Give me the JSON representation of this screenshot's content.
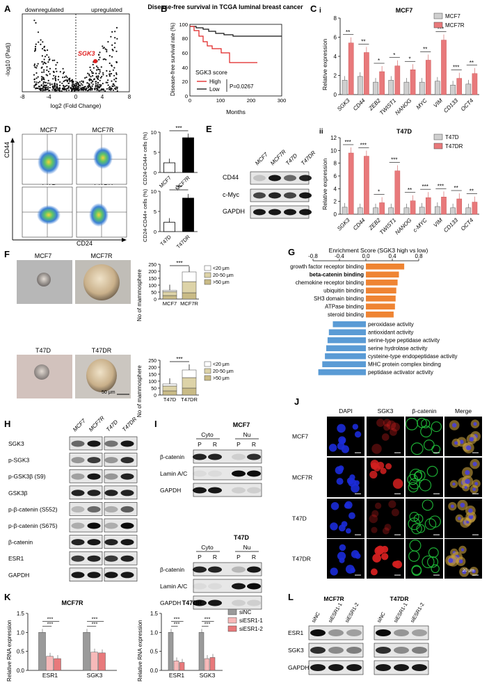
{
  "colors": {
    "red": "#e8797b",
    "red_dark": "#e02020",
    "black": "#111111",
    "gray": "#cfcfcf",
    "orange": "#ef8433",
    "blue": "#5a9bd5",
    "olive": "#c9bb86",
    "olive_light": "#ddd3a8",
    "white": "#ffffff"
  },
  "panelA": {
    "letter": "A",
    "left_label": "downregulated",
    "right_label": "upregulated",
    "ylabel": "-log10 (Padj)",
    "xlabel": "log2 (Fold Change)",
    "highlight": "SGK3",
    "x_ticks": [
      "-8",
      "-4",
      "0",
      "4",
      "8"
    ],
    "y_ticks": [
      "0",
      "10",
      "20",
      "30"
    ]
  },
  "panelB": {
    "letter": "B",
    "title": "Disease-free survival in TCGA luminal breast cancer",
    "ylabel": "Disease-free survival rate (%)",
    "xlabel": "Months",
    "y_ticks": [
      "0",
      "20",
      "40",
      "60",
      "80",
      "100"
    ],
    "x_ticks": [
      "0",
      "100",
      "200",
      "300"
    ],
    "legend_title": "SGK3 score",
    "legend": [
      "High",
      "Low"
    ],
    "pvalue": "P=0.0267"
  },
  "panelC": {
    "letter": "C",
    "i": {
      "roman": "i",
      "title": "MCF7",
      "ylabel": "Relative expression",
      "legend": [
        "MCF7",
        "MCF7R"
      ],
      "y_ticks": [
        "0",
        "2",
        "4",
        "6",
        "8"
      ],
      "ymax": 8,
      "genes": [
        "SGK3",
        "CD44",
        "ZEB2",
        "TWIST1",
        "NANOG",
        "MYC",
        "VIM",
        "CD133",
        "OCT4"
      ],
      "ctrl": [
        1.5,
        1.9,
        1.3,
        1.5,
        1.3,
        1.3,
        1.4,
        1.0,
        1.1
      ],
      "treat": [
        5.4,
        4.4,
        2.4,
        3.0,
        2.6,
        3.6,
        5.7,
        1.7,
        2.2
      ],
      "sig": [
        "**",
        "**",
        "*",
        "*",
        "*",
        "**",
        "***",
        "***",
        "**"
      ]
    },
    "ii": {
      "roman": "ii",
      "title": "T47D",
      "ylabel": "Relative expression",
      "legend": [
        "T47D",
        "T47DR"
      ],
      "y_ticks": [
        "0",
        "2",
        "4",
        "6",
        "8",
        "10",
        "12"
      ],
      "ymax": 12,
      "genes": [
        "SGK3",
        "CD44",
        "ZEB2",
        "TWIST1",
        "NANOG",
        "c-MYC",
        "VIM",
        "CD133",
        "OCT4"
      ],
      "ctrl": [
        1.1,
        1.0,
        1.0,
        1.0,
        1.0,
        1.1,
        1.2,
        1.0,
        1.0
      ],
      "treat": [
        9.6,
        9.1,
        1.8,
        6.8,
        2.1,
        2.6,
        2.7,
        2.4,
        1.9
      ],
      "sig": [
        "***",
        "***",
        "*",
        "***",
        "**",
        "***",
        "***",
        "**",
        "**"
      ]
    }
  },
  "panelD": {
    "letter": "D",
    "plots": [
      "MCF7",
      "MCF7R",
      "T47D",
      "T47DR"
    ],
    "y_axis": "CD44",
    "x_axis": "CD24",
    "bar1": {
      "categories": [
        "MCF7",
        "MCF7R"
      ],
      "values": [
        2.4,
        8.6
      ],
      "y_ticks": [
        "0",
        "5",
        "10"
      ],
      "ylabel": "CD24-CD44+ cells (%)",
      "sig": "***"
    },
    "bar2": {
      "categories": [
        "T47D",
        "T47DR"
      ],
      "values": [
        2.3,
        8.3
      ],
      "y_ticks": [
        "0",
        "5",
        "10"
      ],
      "ylabel": "CD24-CD44+ cells (%)",
      "sig": "***"
    }
  },
  "panelE": {
    "letter": "E",
    "lanes": [
      "MCF7",
      "MCF7R",
      "T47D",
      "T47DR"
    ],
    "rows": [
      "CD44",
      "c-Myc",
      "GAPDH"
    ]
  },
  "panelF": {
    "letter": "F",
    "images": [
      "MCF7",
      "MCF7R",
      "T47D",
      "T47DR"
    ],
    "scale": "50 μm",
    "legend": [
      "<20 μm",
      "20-50 μm",
      ">50 μm"
    ],
    "ylabel": "No of mammosphere",
    "y_ticks": [
      "0",
      "50",
      "100",
      "150",
      "200",
      "250"
    ],
    "chart1": {
      "categories": [
        "MCF7",
        "MCF7R"
      ],
      "small": [
        25,
        45
      ],
      "mid": [
        28,
        80
      ],
      "large": [
        10,
        70
      ],
      "total": [
        63,
        195
      ],
      "sig": "***"
    },
    "chart2": {
      "categories": [
        "T47D",
        "T47DR"
      ],
      "small": [
        30,
        50
      ],
      "mid": [
        35,
        75
      ],
      "large": [
        15,
        55
      ],
      "total": [
        80,
        180
      ],
      "sig": "***"
    }
  },
  "panelG": {
    "letter": "G",
    "title": "Enrichment Score (SGK3 high vs low)",
    "x_ticks": [
      "-0.8",
      "-0.4",
      "0.0",
      "0.4",
      "0.8"
    ],
    "pos_terms": [
      "growth factor receptor binding",
      "beta-catenin binding",
      "chemokine receptor binding",
      "ubiquitin binding",
      "SH3 domain binding",
      "ATPase binding",
      "steroid binding"
    ],
    "pos_values": [
      0.58,
      0.5,
      0.48,
      0.46,
      0.45,
      0.44,
      0.42
    ],
    "neg_terms": [
      "peroxidase activity",
      "antioxidant activity",
      "serine-type peptidase activity",
      "serine hydrolase activity",
      "cysteine-type endopeptidase activity",
      "MHC protein complex binding",
      "peptidase activator activity"
    ],
    "neg_values": [
      -0.5,
      -0.56,
      -0.58,
      -0.6,
      -0.62,
      -0.66,
      -0.72
    ]
  },
  "panelH": {
    "letter": "H",
    "lanes": [
      "MCF7",
      "MCF7R",
      "T47D",
      "T47DR"
    ],
    "rows": [
      "SGK3",
      "p-SGK3",
      "p-GSK3β (S9)",
      "GSK3β",
      "p-β-catenin (S552)",
      "p-β-catenin (S675)",
      "β-catenin",
      "ESR1",
      "GAPDH"
    ]
  },
  "panelI": {
    "letter": "I",
    "blot1": {
      "title": "MCF7",
      "groups": [
        "Cyto",
        "Nu"
      ],
      "lanes": [
        "P",
        "R",
        "P",
        "R"
      ],
      "rows": [
        "β-catenin",
        "Lamin A/C",
        "GAPDH"
      ]
    },
    "blot2": {
      "title": "T47D",
      "groups": [
        "Cyto",
        "Nu"
      ],
      "lanes": [
        "P",
        "R",
        "P",
        "R"
      ],
      "rows": [
        "β-catenin",
        "Lamin A/C",
        "GAPDH"
      ]
    }
  },
  "panelJ": {
    "letter": "J",
    "columns": [
      "DAPI",
      "SGK3",
      "β-catenin",
      "Merge"
    ],
    "rows": [
      "MCF7",
      "MCF7R",
      "T47D",
      "T47DR"
    ],
    "scale": "20 μm"
  },
  "panelK": {
    "letter": "K",
    "ylabel": "Relative RNA expression",
    "y_ticks": [
      "0.0",
      "0.5",
      "1.0",
      "1.5"
    ],
    "legend": [
      "siNC",
      "siESR1-1",
      "siESR1-2"
    ],
    "charts": [
      {
        "title": "MCF7R",
        "categories": [
          "ESR1",
          "SGK3"
        ],
        "values": [
          [
            1.0,
            0.37,
            0.31
          ],
          [
            1.0,
            0.48,
            0.46
          ]
        ],
        "sig": [
          [
            "***",
            "***"
          ],
          [
            "***",
            "***"
          ]
        ]
      },
      {
        "title": "T47DR",
        "categories": [
          "ESR1",
          "SGK3"
        ],
        "values": [
          [
            1.0,
            0.25,
            0.21
          ],
          [
            1.0,
            0.31,
            0.34
          ]
        ],
        "sig": [
          [
            "***",
            "***"
          ],
          [
            "***",
            "***"
          ]
        ]
      }
    ]
  },
  "panelL": {
    "letter": "L",
    "groups": [
      "MCF7R",
      "T47DR"
    ],
    "lanes": [
      "siNC",
      "siESR1-1",
      "siESR1-2"
    ],
    "rows": [
      "ESR1",
      "SGK3",
      "GAPDH"
    ]
  }
}
